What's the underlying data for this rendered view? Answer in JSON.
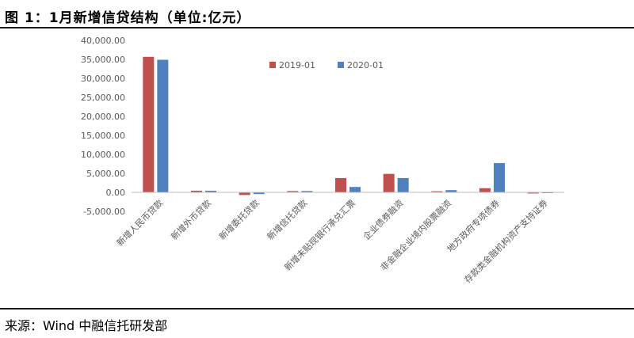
{
  "figure_title": "图 1：1月新增信贷结构（单位:亿元）",
  "source_text": "来源：Wind 中融信托研发部",
  "colors": {
    "series_2019": "#C0504D",
    "series_2020": "#4F81BD",
    "axis": "#BFBFBF",
    "text": "#595959"
  },
  "chart_data": {
    "type": "bar",
    "title": "",
    "xlabel": "",
    "ylabel": "",
    "ylim": [
      -5000,
      40000
    ],
    "yticks": [
      -5000,
      0,
      5000,
      10000,
      15000,
      20000,
      25000,
      30000,
      35000,
      40000
    ],
    "ytick_labels": [
      "-5,000.00",
      "0.00",
      "5,000.00",
      "10,000.00",
      "15,000.00",
      "20,000.00",
      "25,000.00",
      "30,000.00",
      "35,000.00",
      "40,000.00"
    ],
    "grid": false,
    "legend_position": "top-center",
    "categories": [
      "新增人民币贷款",
      "新增外币贷款",
      "新增委托贷款",
      "新增信托贷款",
      "新增未贴现银行承兑汇票",
      "企业债券融资",
      "非金融企业境内股票融资",
      "地方政府专项债券",
      "存款类金融机构资产支持证券"
    ],
    "series": [
      {
        "name": "2019-01",
        "color": "#C0504D",
        "values": [
          35668,
          435,
          -702,
          345,
          3758,
          4861,
          289,
          1100,
          -298
        ]
      },
      {
        "name": "2020-01",
        "color": "#4F81BD",
        "values": [
          34895,
          427,
          -452,
          358,
          1415,
          3763,
          580,
          7700,
          -99
        ]
      }
    ]
  }
}
